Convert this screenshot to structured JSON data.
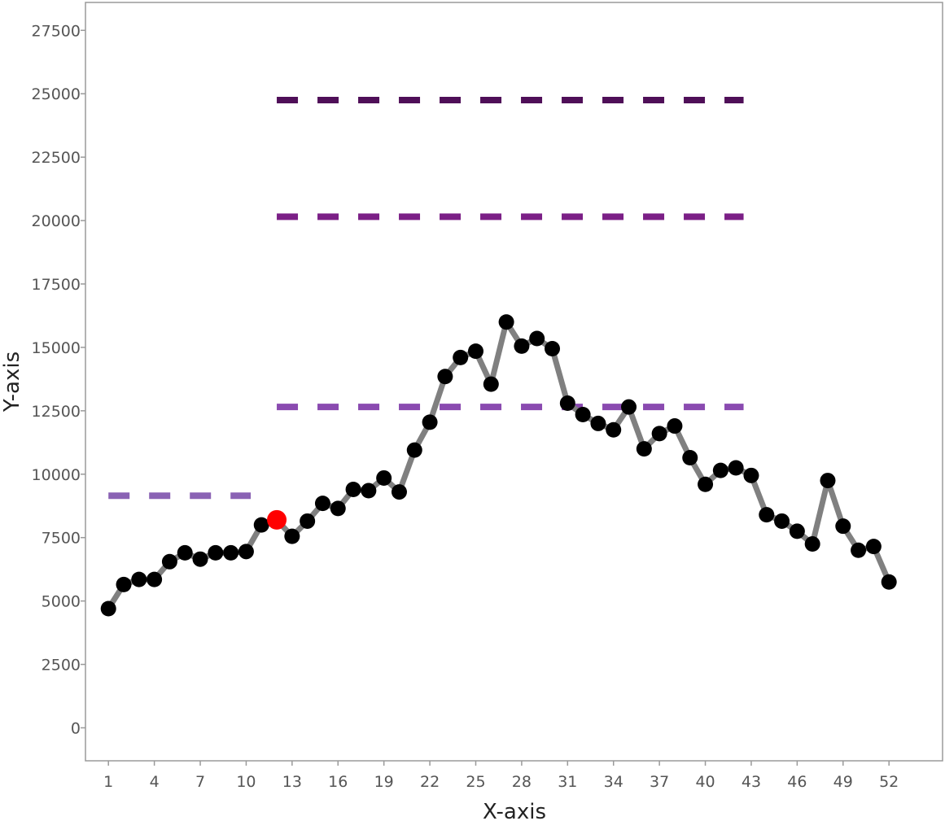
{
  "chart_data": {
    "type": "line",
    "xlabel": "X-axis",
    "ylabel": "Y-axis",
    "xlim": [
      -0.5,
      55.5
    ],
    "ylim": [
      -1300,
      28600
    ],
    "x_ticks": [
      1,
      4,
      7,
      10,
      13,
      16,
      19,
      22,
      25,
      28,
      31,
      34,
      37,
      40,
      43,
      46,
      49,
      52
    ],
    "y_ticks": [
      0,
      2500,
      5000,
      7500,
      10000,
      12500,
      15000,
      17500,
      20000,
      22500,
      25000,
      27500
    ],
    "grid": false,
    "legend": "none",
    "series": [
      {
        "type": "line",
        "color": "#808080",
        "marker_color": "#000000",
        "x": [
          1,
          2,
          3,
          4,
          5,
          6,
          7,
          8,
          9,
          10,
          11,
          12,
          13,
          14,
          15,
          16,
          17,
          18,
          19,
          20,
          21,
          22,
          23,
          24,
          25,
          26,
          27,
          28,
          29,
          30,
          31,
          32,
          33,
          34,
          35,
          36,
          37,
          38,
          39,
          40,
          41,
          42,
          43,
          44,
          45,
          46,
          47,
          48,
          49,
          50,
          51,
          52
        ],
        "values": [
          4700,
          5650,
          5850,
          5850,
          6550,
          6900,
          6650,
          6900,
          6900,
          6950,
          8000,
          8200,
          7550,
          8150,
          8850,
          8650,
          9400,
          9350,
          9850,
          9300,
          10950,
          12050,
          13850,
          14600,
          14850,
          13550,
          16000,
          15050,
          15350,
          14950,
          12800,
          12350,
          12000,
          11750,
          12650,
          11000,
          11600,
          11900,
          10650,
          9600,
          10150,
          10250,
          9950,
          8400,
          8150,
          7750,
          7250,
          9750,
          7950,
          7000,
          7150,
          5750
        ]
      }
    ],
    "highlight_point": {
      "x": 12,
      "y": 8200,
      "color": "#ff0000"
    },
    "reference_lines": [
      {
        "x_start": 1,
        "x_end": 10.3,
        "y": 9150,
        "color": "#8a62b4"
      },
      {
        "x_start": 12,
        "x_end": 42.5,
        "y": 12650,
        "color": "#8a4ab0"
      },
      {
        "x_start": 12,
        "x_end": 42.5,
        "y": 20150,
        "color": "#7b1f86"
      },
      {
        "x_start": 12,
        "x_end": 42.5,
        "y": 24750,
        "color": "#4f0f58"
      }
    ]
  }
}
